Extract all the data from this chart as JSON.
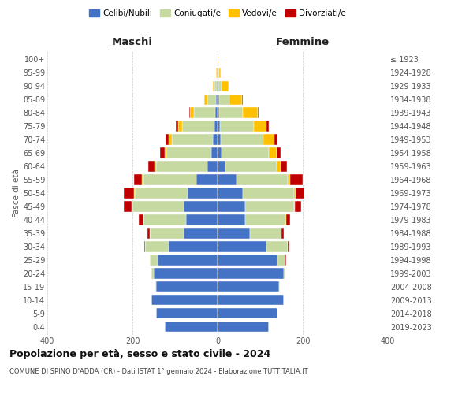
{
  "age_groups": [
    "0-4",
    "5-9",
    "10-14",
    "15-19",
    "20-24",
    "25-29",
    "30-34",
    "35-39",
    "40-44",
    "45-49",
    "50-54",
    "55-59",
    "60-64",
    "65-69",
    "70-74",
    "75-79",
    "80-84",
    "85-89",
    "90-94",
    "95-99",
    "100+"
  ],
  "birth_years": [
    "2019-2023",
    "2014-2018",
    "2009-2013",
    "2004-2008",
    "1999-2003",
    "1994-1998",
    "1989-1993",
    "1984-1988",
    "1979-1983",
    "1974-1978",
    "1969-1973",
    "1964-1968",
    "1959-1963",
    "1954-1958",
    "1949-1953",
    "1944-1948",
    "1939-1943",
    "1934-1938",
    "1929-1933",
    "1924-1928",
    "≤ 1923"
  ],
  "colors": {
    "celibi": "#4472c4",
    "coniugati": "#c5d9a0",
    "vedovi": "#ffc000",
    "divorziati": "#c00000"
  },
  "maschi": {
    "celibi": [
      125,
      145,
      155,
      145,
      150,
      140,
      115,
      80,
      75,
      80,
      70,
      50,
      25,
      15,
      12,
      8,
      5,
      4,
      2,
      1,
      0
    ],
    "coniugati": [
      0,
      0,
      0,
      2,
      5,
      20,
      55,
      80,
      100,
      120,
      125,
      125,
      120,
      105,
      95,
      75,
      50,
      20,
      5,
      1,
      0
    ],
    "vedovi": [
      0,
      0,
      0,
      0,
      0,
      0,
      0,
      0,
      0,
      1,
      1,
      2,
      3,
      5,
      8,
      10,
      10,
      8,
      5,
      2,
      0
    ],
    "divorziati": [
      0,
      0,
      0,
      0,
      0,
      0,
      3,
      5,
      10,
      20,
      25,
      20,
      15,
      10,
      8,
      5,
      2,
      0,
      0,
      0,
      0
    ]
  },
  "femmine": {
    "nubili": [
      120,
      140,
      155,
      145,
      155,
      140,
      115,
      75,
      65,
      65,
      60,
      45,
      18,
      10,
      8,
      5,
      4,
      3,
      2,
      1,
      0
    ],
    "coniugate": [
      0,
      0,
      0,
      2,
      5,
      20,
      50,
      75,
      95,
      115,
      120,
      120,
      120,
      110,
      100,
      80,
      55,
      25,
      8,
      2,
      0
    ],
    "vedove": [
      0,
      0,
      0,
      0,
      0,
      0,
      0,
      0,
      1,
      2,
      3,
      5,
      10,
      18,
      25,
      30,
      35,
      30,
      15,
      5,
      1
    ],
    "divorziate": [
      0,
      0,
      0,
      0,
      0,
      2,
      3,
      5,
      10,
      15,
      20,
      30,
      15,
      10,
      8,
      5,
      3,
      2,
      0,
      0,
      0
    ]
  },
  "title": "Popolazione per età, sesso e stato civile - 2024",
  "subtitle": "COMUNE DI SPINO D'ADDA (CR) - Dati ISTAT 1° gennaio 2024 - Elaborazione TUTTITALIA.IT",
  "xlabel_left": "Maschi",
  "xlabel_right": "Femmine",
  "ylabel_left": "Fasce di età",
  "xlim": 400,
  "legend_labels": [
    "Celibi/Nubili",
    "Coniugati/e",
    "Vedovi/e",
    "Divorziati/e"
  ],
  "background_color": "#ffffff",
  "grid_color": "#cccccc"
}
